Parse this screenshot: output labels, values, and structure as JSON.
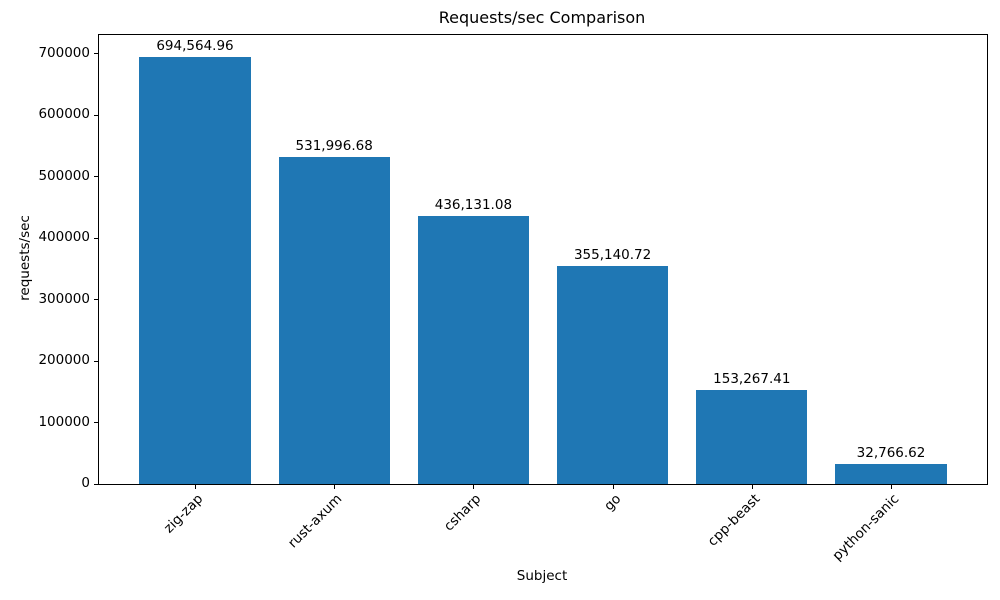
{
  "chart_data": {
    "type": "bar",
    "title": "Requests/sec Comparison",
    "xlabel": "Subject",
    "ylabel": "requests/sec",
    "categories": [
      "zig-zap",
      "rust-axum",
      "csharp",
      "go",
      "cpp-beast",
      "python-sanic"
    ],
    "values": [
      694564.96,
      531996.68,
      436131.08,
      355140.72,
      153267.41,
      32766.62
    ],
    "value_labels": [
      "694,564.96",
      "531,996.68",
      "436,131.08",
      "355,140.72",
      "153,267.41",
      "32,766.62"
    ],
    "yticks": [
      0,
      100000,
      200000,
      300000,
      400000,
      500000,
      600000,
      700000
    ],
    "ylim": [
      0,
      730000
    ],
    "xlim": [
      -0.69,
      5.69
    ],
    "bar_rel_width": 0.8,
    "bar_color": "#1f77b4",
    "grid": false,
    "legend": null,
    "background_color": "#ffffff",
    "text_color": "#000000",
    "spine_color": "#000000"
  }
}
